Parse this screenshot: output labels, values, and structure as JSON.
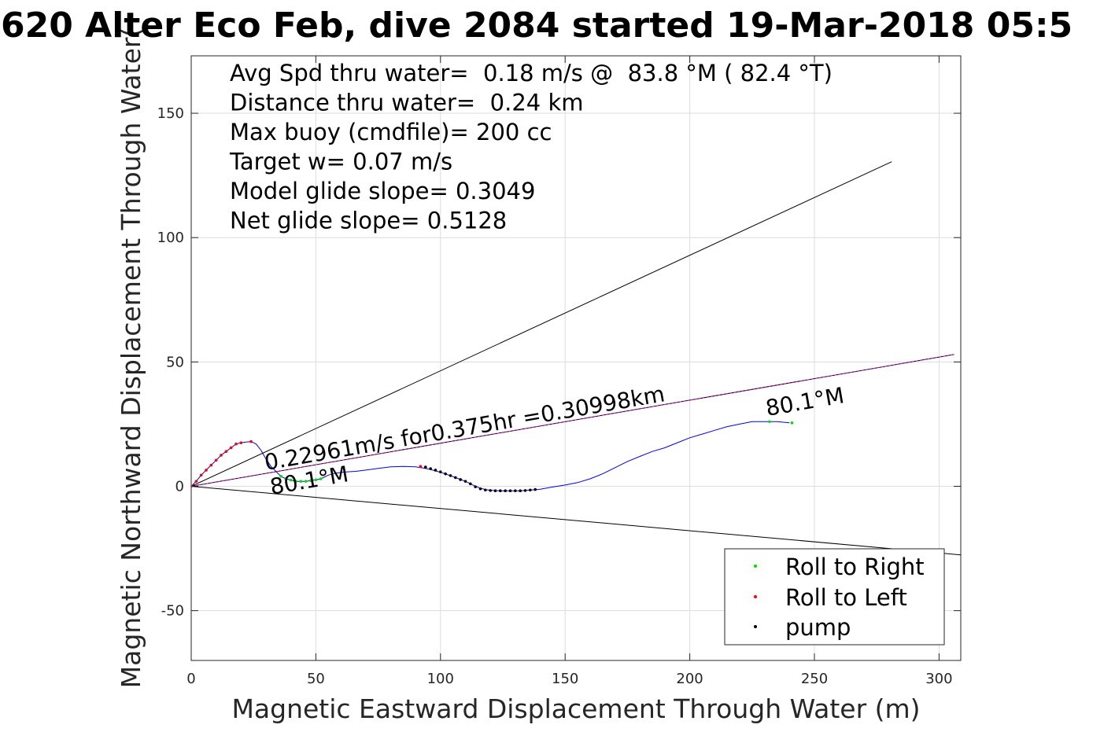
{
  "chart_data": {
    "type": "line",
    "title": "620 Alter Eco Feb, dive 2084 started 19-Mar-2018 05:5",
    "xlabel": "Magnetic Eastward Displacement Through Water (m)",
    "ylabel": "Magnetic Northward Displacement Through Water(",
    "xlim": [
      0,
      309
    ],
    "ylim": [
      -70,
      173
    ],
    "xticks": [
      0,
      50,
      100,
      150,
      200,
      250,
      300
    ],
    "yticks": [
      -50,
      0,
      50,
      100,
      150
    ],
    "xtick_labels": [
      "0",
      "50",
      "100",
      "150",
      "200",
      "250",
      "300"
    ],
    "ytick_labels": [
      "-50",
      "0",
      "50",
      "100",
      "150"
    ],
    "grid": true,
    "info_lines": [
      "Avg Spd thru water=  0.18 m/s @  83.8 °M ( 82.4 °T)",
      "Distance thru water=  0.24 km",
      "Max buoy (cmdfile)= 200 cc",
      "Target w= 0.07 m/s",
      "Model glide slope= 0.3049",
      "Net glide slope= 0.5128"
    ],
    "annotations": {
      "track_label": "0.22961m/s for0.375hr =0.30998km",
      "heading_start": "80.1°M",
      "heading_end": "80.1°M"
    },
    "series": [
      {
        "name": "track",
        "color": "#0000ff",
        "x": [
          0,
          2,
          4,
          6,
          8,
          10,
          12,
          14,
          16,
          18,
          20,
          22,
          24,
          26,
          28,
          30,
          32,
          34,
          36,
          38,
          40,
          42,
          44,
          46,
          48,
          50,
          52,
          55,
          58,
          62,
          66,
          70,
          75,
          80,
          85,
          90,
          94,
          98,
          102,
          106,
          110,
          113,
          116,
          118,
          120,
          124,
          128,
          132,
          136,
          140,
          145,
          150,
          155,
          160,
          165,
          170,
          175,
          180,
          185,
          190,
          195,
          200,
          205,
          210,
          215,
          220,
          225,
          230,
          235,
          240
        ],
        "y": [
          0,
          2,
          4.5,
          6.5,
          8.5,
          10.5,
          12.5,
          14,
          15.5,
          17,
          17.5,
          17.8,
          18,
          17,
          14.5,
          11,
          8,
          6,
          4,
          3,
          2.5,
          2,
          2,
          2,
          2.3,
          2.6,
          3,
          4.5,
          5.3,
          5.8,
          6,
          6.5,
          7.2,
          7.8,
          8,
          7.8,
          7.2,
          6.2,
          5,
          3.5,
          2,
          0.5,
          -0.8,
          -1.3,
          -1.6,
          -1.8,
          -1.8,
          -1.8,
          -1.5,
          -1.2,
          -0.3,
          0.5,
          1.5,
          3,
          5,
          7.5,
          10,
          12,
          14,
          15.5,
          17.5,
          19.5,
          21,
          22.5,
          24,
          25,
          26,
          26,
          26,
          25.5
        ]
      },
      {
        "name": "heading-ray-upper",
        "color": "#000000",
        "x": [
          0,
          281
        ],
        "y": [
          0,
          130.5
        ]
      },
      {
        "name": "heading-ray-lower",
        "color": "#000000",
        "x": [
          0,
          309
        ],
        "y": [
          0,
          -27.6
        ]
      },
      {
        "name": "net-displacement",
        "color": "#000000",
        "x": [
          0,
          306
        ],
        "y": [
          0,
          53
        ]
      }
    ],
    "markers": {
      "roll_right": {
        "name": "Roll to Right",
        "color": "#00e000",
        "x": [
          36,
          38,
          40,
          42,
          44,
          46,
          48,
          50,
          52,
          232,
          241
        ],
        "y": [
          4,
          3,
          2.5,
          2,
          2,
          2,
          2.3,
          2.6,
          3,
          26,
          25.5
        ]
      },
      "roll_left": {
        "name": "Roll to Left",
        "color": "#ff0000",
        "x": [
          0,
          2,
          4,
          6,
          8,
          10,
          12,
          14,
          16,
          18,
          20,
          24,
          92,
          94
        ],
        "y": [
          0,
          2,
          4.5,
          6.5,
          8.5,
          10.5,
          12.5,
          14,
          15.5,
          17,
          17.5,
          18,
          8,
          7.8
        ]
      },
      "pump": {
        "name": "pump",
        "color": "#000000",
        "x": [
          94,
          96,
          98,
          100,
          102,
          104,
          106,
          108,
          110,
          112,
          114,
          116,
          118,
          120,
          122,
          124,
          126,
          128,
          130,
          132,
          134,
          136,
          138
        ],
        "y": [
          7.6,
          7.1,
          6.5,
          5.8,
          5,
          4.3,
          3.5,
          2.7,
          2,
          1,
          -0.2,
          -1,
          -1.5,
          -1.7,
          -1.8,
          -1.8,
          -1.8,
          -1.8,
          -1.8,
          -1.8,
          -1.7,
          -1.5,
          -1.3
        ]
      }
    },
    "legend": {
      "location": "bottom-right",
      "entries": [
        "Roll to Right",
        "Roll to Left",
        "pump"
      ]
    }
  }
}
